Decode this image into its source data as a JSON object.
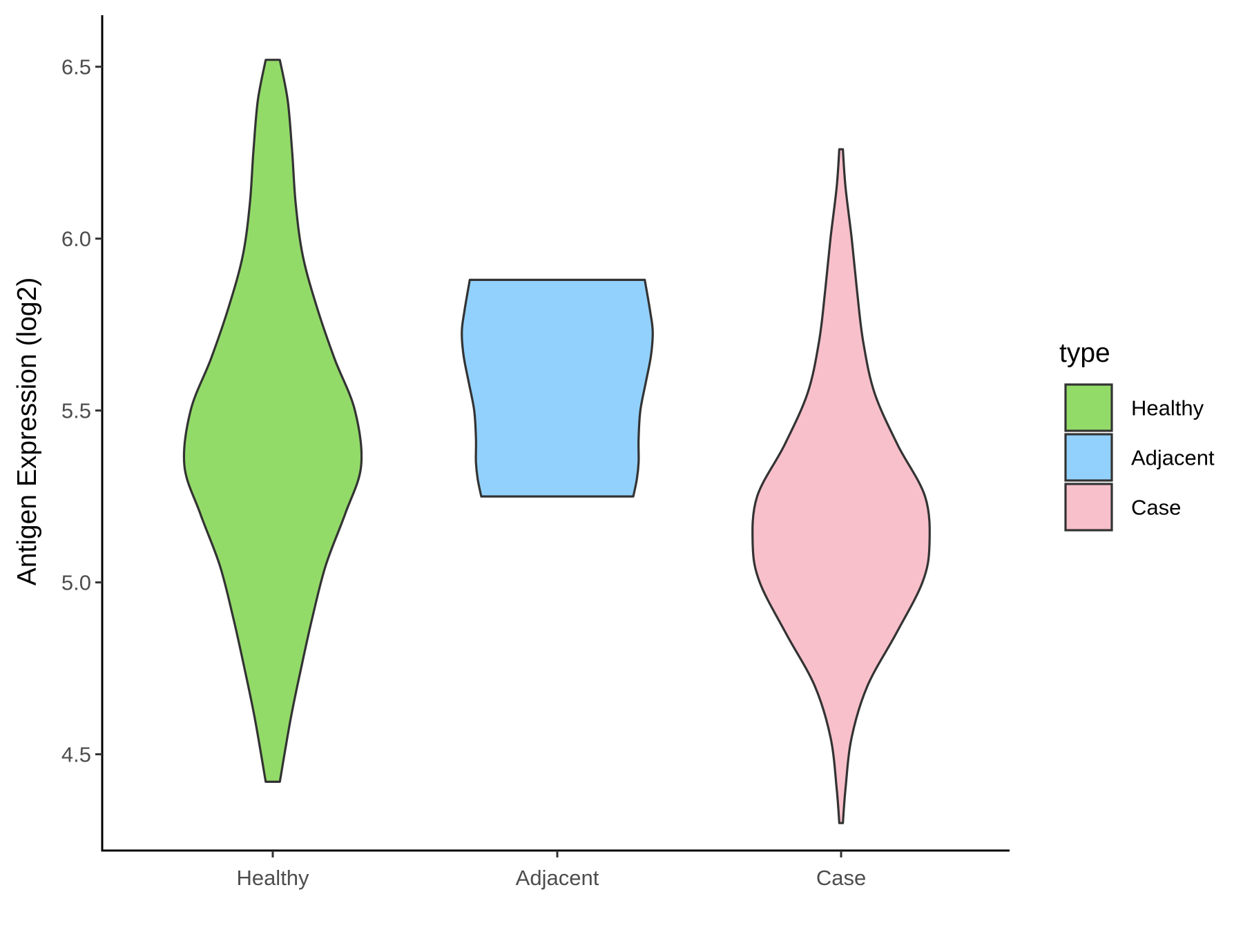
{
  "chart_data": {
    "type": "violin",
    "title": "",
    "xlabel": "",
    "ylabel": "Antigen Expression (log2)",
    "ylim": [
      4.22,
      6.65
    ],
    "yticks": [
      "4.5",
      "5.0",
      "5.5",
      "6.0",
      "6.5"
    ],
    "categories": [
      "Healthy",
      "Adjacent",
      "Case"
    ],
    "grid": false,
    "legend": {
      "title": "type",
      "position": "right",
      "items": [
        "Healthy",
        "Adjacent",
        "Case"
      ]
    },
    "outline_color": "#333333",
    "series": [
      {
        "name": "Healthy",
        "color": "#93db69",
        "min": 4.42,
        "max": 6.52,
        "density": [
          [
            4.42,
            0.08
          ],
          [
            4.6,
            0.2
          ],
          [
            4.75,
            0.32
          ],
          [
            4.9,
            0.45
          ],
          [
            5.05,
            0.6
          ],
          [
            5.2,
            0.82
          ],
          [
            5.34,
            1.0
          ],
          [
            5.5,
            0.93
          ],
          [
            5.65,
            0.7
          ],
          [
            5.8,
            0.5
          ],
          [
            5.95,
            0.34
          ],
          [
            6.1,
            0.26
          ],
          [
            6.25,
            0.22
          ],
          [
            6.4,
            0.17
          ],
          [
            6.52,
            0.08
          ]
        ]
      },
      {
        "name": "Adjacent",
        "color": "#92d1fd",
        "min": 5.25,
        "max": 5.88,
        "density": [
          [
            5.25,
            0.86
          ],
          [
            5.3,
            0.9
          ],
          [
            5.35,
            0.92
          ],
          [
            5.42,
            0.92
          ],
          [
            5.5,
            0.94
          ],
          [
            5.58,
            1.0
          ],
          [
            5.66,
            1.06
          ],
          [
            5.73,
            1.08
          ],
          [
            5.79,
            1.05
          ],
          [
            5.88,
            0.99
          ]
        ]
      },
      {
        "name": "Case",
        "color": "#f8c0cb",
        "min": 4.3,
        "max": 6.26,
        "density": [
          [
            4.3,
            0.02
          ],
          [
            4.4,
            0.05
          ],
          [
            4.55,
            0.12
          ],
          [
            4.7,
            0.3
          ],
          [
            4.85,
            0.62
          ],
          [
            5.0,
            0.92
          ],
          [
            5.11,
            1.0
          ],
          [
            5.25,
            0.95
          ],
          [
            5.4,
            0.64
          ],
          [
            5.55,
            0.38
          ],
          [
            5.7,
            0.25
          ],
          [
            5.85,
            0.18
          ],
          [
            6.0,
            0.12
          ],
          [
            6.15,
            0.05
          ],
          [
            6.26,
            0.02
          ]
        ]
      }
    ]
  }
}
